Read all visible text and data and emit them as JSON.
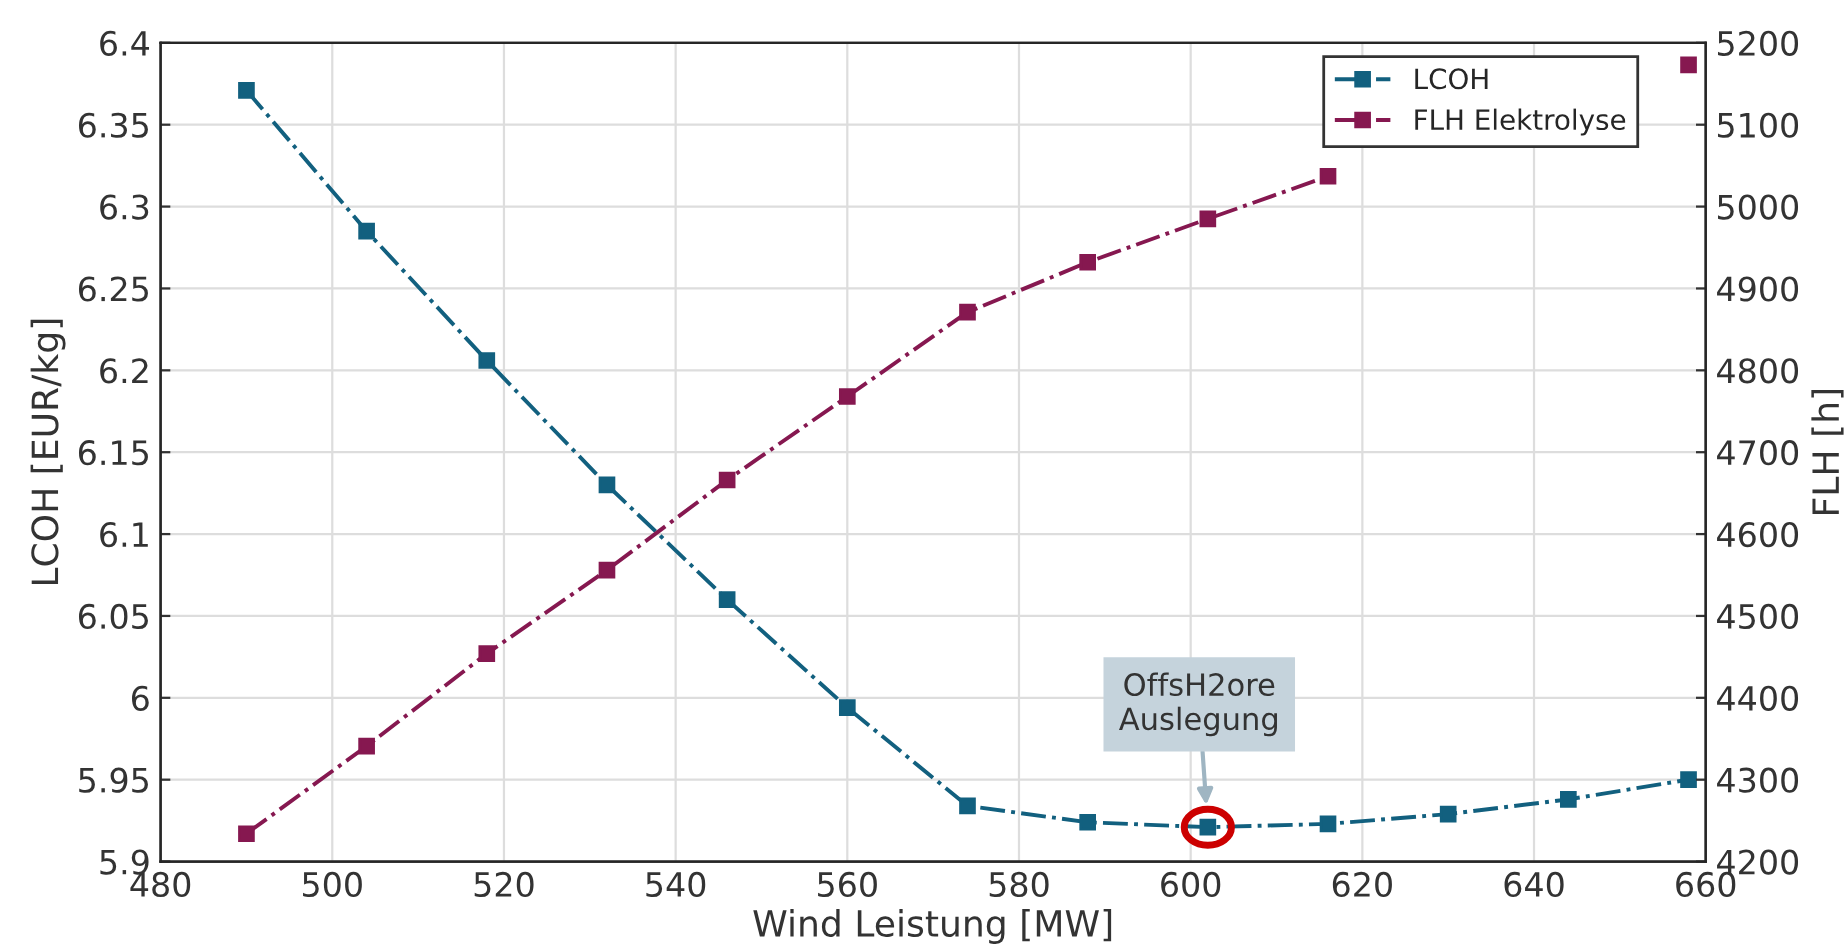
{
  "chart_data": {
    "type": "line",
    "xlabel": "Wind Leistung [MW]",
    "ylabel": "LCOH [EUR/kg]",
    "y2label": "FLH [h]",
    "x": [
      490,
      504,
      518,
      532,
      546,
      560,
      574,
      588,
      602,
      616,
      630,
      644,
      658
    ],
    "series": [
      {
        "name": "LCOH",
        "color": "#12607f",
        "values": [
          6.371,
          6.285,
          6.206,
          6.13,
          6.06,
          5.994,
          5.934,
          5.924,
          5.921,
          5.923,
          5.929,
          5.938,
          5.95
        ]
      },
      {
        "name": "FLH Elektrolyse",
        "color": "#861850",
        "axis": "y2",
        "values": [
          4234,
          4341,
          4454,
          4556,
          4666,
          4768,
          4871,
          4932,
          4985,
          5037,
          null,
          null,
          5173
        ]
      }
    ],
    "xlim": [
      480,
      660
    ],
    "xticks": [
      480,
      500,
      520,
      540,
      560,
      580,
      600,
      620,
      640,
      660
    ],
    "ylim": [
      5.9,
      6.4
    ],
    "yticks": [
      {
        "value": 5.9,
        "label": "5.9"
      },
      {
        "value": 5.95,
        "label": "5.95"
      },
      {
        "value": 6,
        "label": "6"
      },
      {
        "value": 6.05,
        "label": "6.05"
      },
      {
        "value": 6.1,
        "label": "6.1"
      },
      {
        "value": 6.15,
        "label": "6.15"
      },
      {
        "value": 6.2,
        "label": "6.2"
      },
      {
        "value": 6.25,
        "label": "6.25"
      },
      {
        "value": 6.3,
        "label": "6.3"
      },
      {
        "value": 6.35,
        "label": "6.35"
      },
      {
        "value": 6.4,
        "label": "6.4"
      }
    ],
    "y2lim": [
      4200,
      5200
    ],
    "y2ticks": [
      4200,
      4300,
      4400,
      4500,
      4600,
      4700,
      4800,
      4900,
      5000,
      5100,
      5200
    ],
    "annotations": [
      {
        "text": "OffsH2ore\nAuslegung",
        "x": 602,
        "y": 5.921
      }
    ],
    "grid": true,
    "legend": "top right",
    "marker": "square",
    "line_style": "dashdot"
  }
}
